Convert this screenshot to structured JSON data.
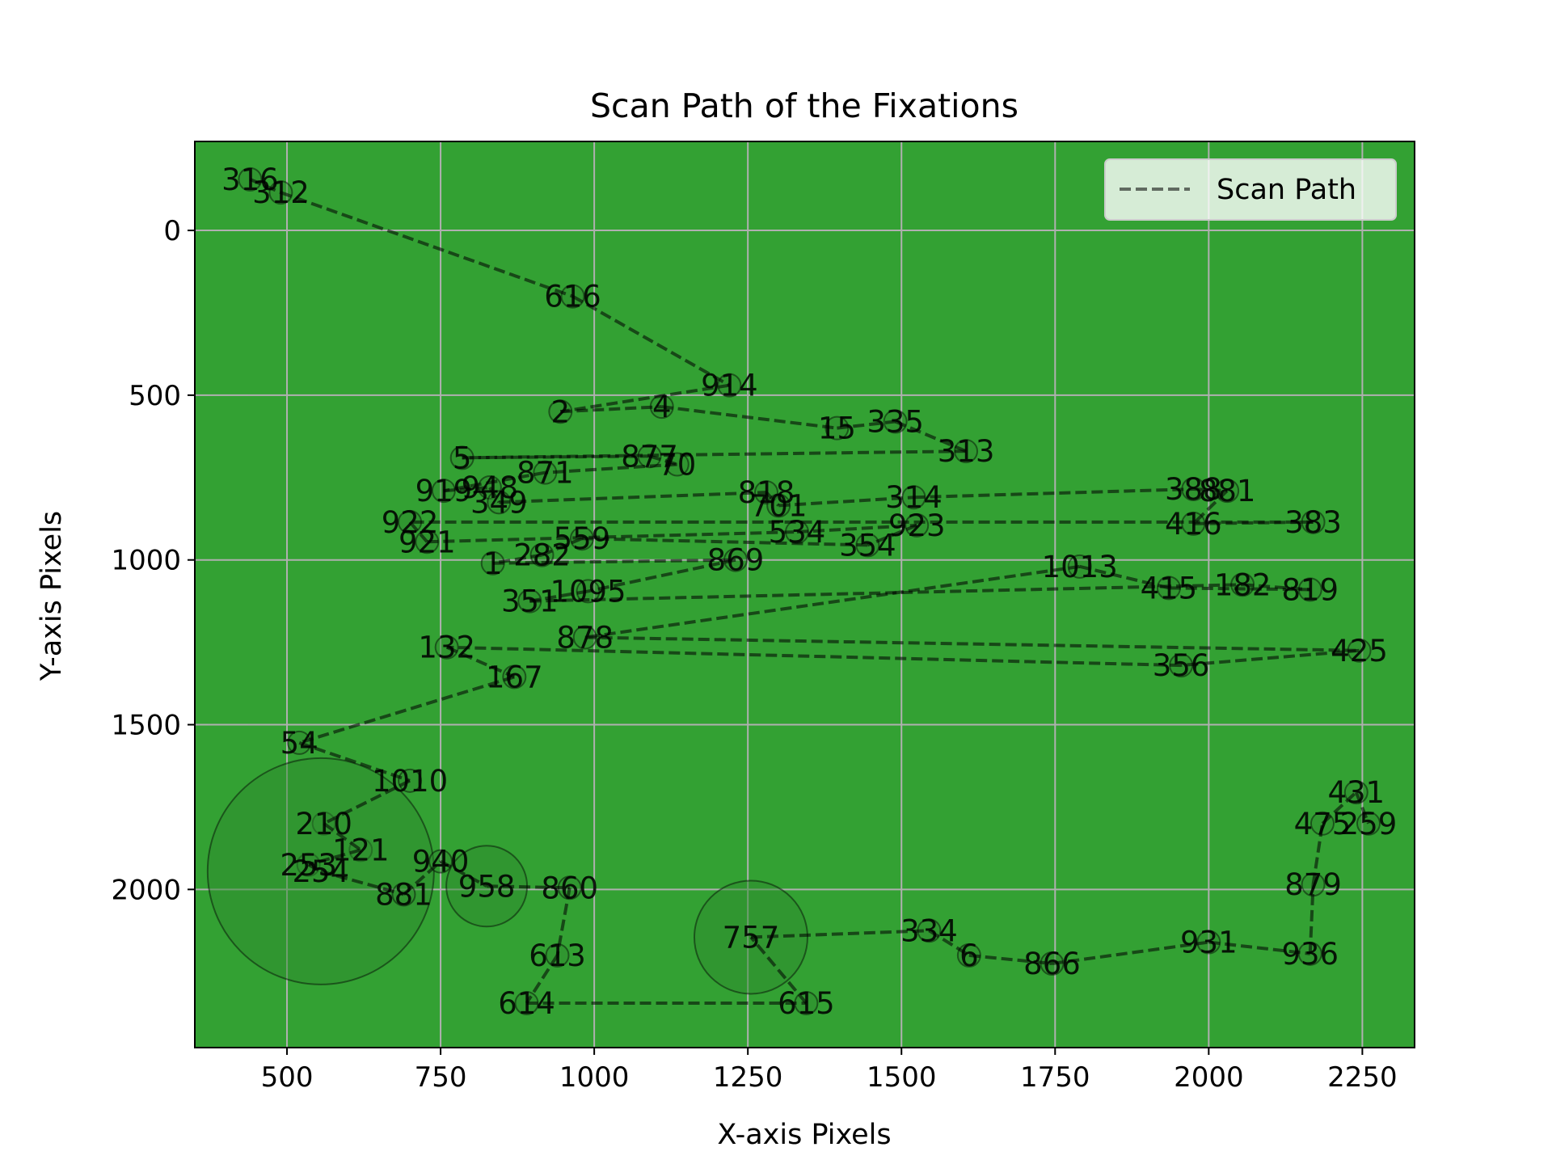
{
  "chart_data": {
    "type": "scatter",
    "title": "Scan Path of the Fixations",
    "xlabel": "X-axis Pixels",
    "ylabel": "Y-axis Pixels",
    "xlim": [
      350,
      2335
    ],
    "ylim": [
      2480,
      -270
    ],
    "y_inverted": true,
    "grid": true,
    "x_ticks": [
      500,
      750,
      1000,
      1250,
      1500,
      1750,
      2000,
      2250
    ],
    "y_ticks": [
      0,
      500,
      1000,
      1500,
      2000
    ],
    "background_color": "#33a133",
    "path_color": "#000000",
    "legend": {
      "entries": [
        "Scan Path"
      ],
      "position": "upper right"
    },
    "fixations": [
      {
        "label": "316",
        "x": 440,
        "y": -155,
        "r": 14
      },
      {
        "label": "312",
        "x": 490,
        "y": -115,
        "r": 14
      },
      {
        "label": "616",
        "x": 965,
        "y": 200,
        "r": 14
      },
      {
        "label": "914",
        "x": 1220,
        "y": 470,
        "r": 14
      },
      {
        "label": "2",
        "x": 945,
        "y": 550,
        "r": 14
      },
      {
        "label": "4",
        "x": 1110,
        "y": 535,
        "r": 14
      },
      {
        "label": "15",
        "x": 1395,
        "y": 600,
        "r": 14
      },
      {
        "label": "335",
        "x": 1490,
        "y": 580,
        "r": 14
      },
      {
        "label": "313",
        "x": 1605,
        "y": 670,
        "r": 14
      },
      {
        "label": "5",
        "x": 785,
        "y": 690,
        "r": 14
      },
      {
        "label": "877",
        "x": 1090,
        "y": 685,
        "r": 14
      },
      {
        "label": "70",
        "x": 1135,
        "y": 710,
        "r": 14
      },
      {
        "label": "871",
        "x": 920,
        "y": 735,
        "r": 14
      },
      {
        "label": "919",
        "x": 755,
        "y": 790,
        "r": 14
      },
      {
        "label": "948",
        "x": 830,
        "y": 780,
        "r": 14
      },
      {
        "label": "349",
        "x": 845,
        "y": 825,
        "r": 14
      },
      {
        "label": "818",
        "x": 1280,
        "y": 795,
        "r": 14
      },
      {
        "label": "701",
        "x": 1300,
        "y": 835,
        "r": 14
      },
      {
        "label": "314",
        "x": 1520,
        "y": 810,
        "r": 14
      },
      {
        "label": "388",
        "x": 1975,
        "y": 785,
        "r": 14
      },
      {
        "label": "881",
        "x": 2030,
        "y": 790,
        "r": 14
      },
      {
        "label": "416",
        "x": 1975,
        "y": 890,
        "r": 14
      },
      {
        "label": "383",
        "x": 2170,
        "y": 885,
        "r": 14
      },
      {
        "label": "922",
        "x": 700,
        "y": 885,
        "r": 14
      },
      {
        "label": "921",
        "x": 728,
        "y": 945,
        "r": 14
      },
      {
        "label": "534",
        "x": 1330,
        "y": 915,
        "r": 14
      },
      {
        "label": "923",
        "x": 1525,
        "y": 895,
        "r": 14
      },
      {
        "label": "354",
        "x": 1445,
        "y": 955,
        "r": 14
      },
      {
        "label": "559",
        "x": 980,
        "y": 935,
        "r": 14
      },
      {
        "label": "282",
        "x": 915,
        "y": 985,
        "r": 14
      },
      {
        "label": "1",
        "x": 835,
        "y": 1010,
        "r": 14
      },
      {
        "label": "869",
        "x": 1230,
        "y": 1000,
        "r": 14
      },
      {
        "label": "1095",
        "x": 990,
        "y": 1095,
        "r": 14
      },
      {
        "label": "351",
        "x": 895,
        "y": 1125,
        "r": 14
      },
      {
        "label": "182",
        "x": 2055,
        "y": 1075,
        "r": 14
      },
      {
        "label": "819",
        "x": 2165,
        "y": 1090,
        "r": 14
      },
      {
        "label": "415",
        "x": 1935,
        "y": 1085,
        "r": 14
      },
      {
        "label": "1013",
        "x": 1790,
        "y": 1020,
        "r": 14
      },
      {
        "label": "878",
        "x": 985,
        "y": 1235,
        "r": 14
      },
      {
        "label": "425",
        "x": 2245,
        "y": 1275,
        "r": 14
      },
      {
        "label": "356",
        "x": 1955,
        "y": 1320,
        "r": 14
      },
      {
        "label": "132",
        "x": 760,
        "y": 1265,
        "r": 14
      },
      {
        "label": "167",
        "x": 870,
        "y": 1355,
        "r": 14
      },
      {
        "label": "54",
        "x": 520,
        "y": 1555,
        "r": 14
      },
      {
        "label": "1010",
        "x": 700,
        "y": 1670,
        "r": 14
      },
      {
        "label": "210",
        "x": 560,
        "y": 1800,
        "r": 14
      },
      {
        "label": "121",
        "x": 620,
        "y": 1880,
        "r": 14
      },
      {
        "label": "253",
        "x": 535,
        "y": 1925,
        "r": 14
      },
      {
        "label": "254",
        "x": 555,
        "y": 1945,
        "r": 140
      },
      {
        "label": "881",
        "x": 690,
        "y": 2015,
        "r": 14
      },
      {
        "label": "940",
        "x": 750,
        "y": 1915,
        "r": 14
      },
      {
        "label": "958",
        "x": 825,
        "y": 1990,
        "r": 50
      },
      {
        "label": "860",
        "x": 960,
        "y": 1995,
        "r": 14
      },
      {
        "label": "613",
        "x": 940,
        "y": 2200,
        "r": 14
      },
      {
        "label": "614",
        "x": 890,
        "y": 2345,
        "r": 14
      },
      {
        "label": "615",
        "x": 1345,
        "y": 2345,
        "r": 14
      },
      {
        "label": "757",
        "x": 1255,
        "y": 2145,
        "r": 70
      },
      {
        "label": "334",
        "x": 1545,
        "y": 2125,
        "r": 14
      },
      {
        "label": "6",
        "x": 1610,
        "y": 2200,
        "r": 14
      },
      {
        "label": "866",
        "x": 1745,
        "y": 2225,
        "r": 14
      },
      {
        "label": "931",
        "x": 2000,
        "y": 2160,
        "r": 14
      },
      {
        "label": "936",
        "x": 2165,
        "y": 2195,
        "r": 14
      },
      {
        "label": "879",
        "x": 2170,
        "y": 1985,
        "r": 14
      },
      {
        "label": "475",
        "x": 2185,
        "y": 1800,
        "r": 14
      },
      {
        "label": "431",
        "x": 2240,
        "y": 1705,
        "r": 14
      },
      {
        "label": "259",
        "x": 2260,
        "y": 1800,
        "r": 14
      }
    ]
  }
}
